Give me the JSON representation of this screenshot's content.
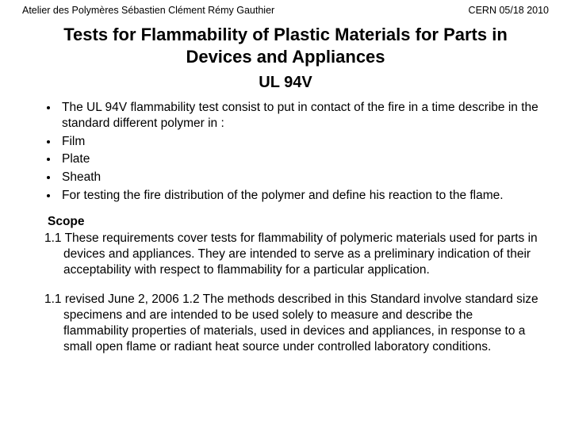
{
  "header": {
    "left": "Atelier des Polymères  Sébastien Clément  Rémy Gauthier",
    "right": "CERN 05/18 2010"
  },
  "title": "Tests for Flammability of Plastic Materials for Parts in Devices and Appliances",
  "subtitle": "UL 94V",
  "bullets": [
    "The UL 94V flammability test consist  to put in contact of the fire in a time describe in the standard different polymer in :",
    "Film",
    "Plate",
    "Sheath",
    "For testing the fire distribution of the polymer and define his reaction to the flame."
  ],
  "scope_label": " Scope",
  "paragraphs": [
    "1.1 These requirements cover tests for flammability of polymeric materials used for parts in devices and appliances. They are intended to serve as a preliminary indication of their acceptability with respect to flammability for a particular application.",
    "1.1 revised June 2, 2006 1.2 The methods described in this Standard involve standard size specimens and are intended to be used solely to measure and describe the flammability properties of materials, used in devices and appliances, in response to a small open flame or radiant heat source under controlled laboratory conditions."
  ],
  "styles": {
    "background_color": "#ffffff",
    "text_color": "#000000",
    "header_fontsize": 12.5,
    "title_fontsize": 22,
    "subtitle_fontsize": 20,
    "body_fontsize": 15.5
  }
}
